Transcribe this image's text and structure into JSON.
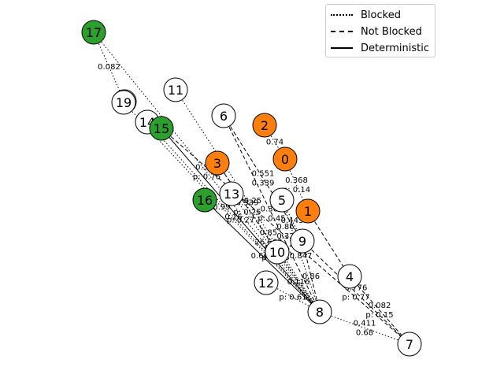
{
  "colors": {
    "orange": "#ff7f0e",
    "green": "#2ca02c",
    "white": "#ffffff"
  },
  "legend": [
    {
      "style": "dotted",
      "label": "Blocked"
    },
    {
      "style": "dashed",
      "label": "Not Blocked"
    },
    {
      "style": "solid",
      "label": "Deterministic"
    }
  ],
  "nodes": [
    {
      "id": "0",
      "color": "orange"
    },
    {
      "id": "1",
      "color": "orange"
    },
    {
      "id": "2",
      "color": "orange"
    },
    {
      "id": "3",
      "color": "orange"
    },
    {
      "id": "4",
      "color": "white"
    },
    {
      "id": "5",
      "color": "white"
    },
    {
      "id": "6",
      "color": "white"
    },
    {
      "id": "7",
      "color": "white"
    },
    {
      "id": "8",
      "color": "white"
    },
    {
      "id": "9",
      "color": "white"
    },
    {
      "id": "10",
      "color": "white"
    },
    {
      "id": "11",
      "color": "white"
    },
    {
      "id": "12",
      "color": "white"
    },
    {
      "id": "13",
      "color": "white"
    },
    {
      "id": "14",
      "color": "white"
    },
    {
      "id": "15",
      "color": "green"
    },
    {
      "id": "16",
      "color": "green"
    },
    {
      "id": "17",
      "color": "green"
    },
    {
      "id": "18",
      "color": "white"
    },
    {
      "id": "19",
      "color": "white"
    }
  ],
  "edges": [
    {
      "from": "17",
      "to": "8",
      "style": "dotted",
      "lines": [
        "0.329",
        "p: 0.76"
      ]
    },
    {
      "from": "17",
      "to": "18",
      "style": "dotted",
      "lines": [
        "0.082"
      ]
    },
    {
      "from": "19",
      "to": "8",
      "style": "dotted",
      "lines": [
        "0.99"
      ]
    },
    {
      "from": "14",
      "to": "8",
      "style": "dotted",
      "lines": [
        "0.26"
      ]
    },
    {
      "from": "15",
      "to": "7",
      "style": "dashed",
      "lines": [
        "0.86",
        "0.32",
        "p: 0.42"
      ]
    },
    {
      "from": "15",
      "to": "8",
      "style": "solid",
      "lines": [
        "p: 0.27"
      ]
    },
    {
      "from": "11",
      "to": "8",
      "style": "dotted",
      "lines": [
        "p: 0.25"
      ]
    },
    {
      "from": "6",
      "to": "8",
      "style": "dashed",
      "lines": [
        "0.368",
        "p: 0.45"
      ]
    },
    {
      "from": "6",
      "to": "9",
      "style": "dashed",
      "lines": [
        "0.551",
        "0.339"
      ]
    },
    {
      "from": "2",
      "to": "0",
      "style": "dotted",
      "lines": [
        "0.74"
      ]
    },
    {
      "from": "0",
      "to": "1",
      "style": "dotted",
      "lines": [
        "0.368",
        "p: 0.14"
      ]
    },
    {
      "from": "3",
      "to": "8",
      "style": "dotted",
      "lines": [
        "0.85",
        "26.663"
      ]
    },
    {
      "from": "3",
      "to": "10",
      "style": "dashed",
      "lines": [
        "0.339",
        "p: 0.25"
      ]
    },
    {
      "from": "13",
      "to": "8",
      "style": "dotted",
      "lines": [
        "0.593",
        "p: 0.68"
      ]
    },
    {
      "from": "16",
      "to": "8",
      "style": "solid",
      "lines": [
        "0.663"
      ]
    },
    {
      "from": "5",
      "to": "9",
      "style": "dotted",
      "lines": [
        "0.443"
      ]
    },
    {
      "from": "5",
      "to": "8",
      "style": "dotted",
      "lines": [
        "0.847"
      ]
    },
    {
      "from": "10",
      "to": "8",
      "style": "dotted",
      "lines": [
        "0.116"
      ]
    },
    {
      "from": "9",
      "to": "7",
      "style": "dashed",
      "lines": [
        "0.776",
        "p: 0.77"
      ]
    },
    {
      "from": "9",
      "to": "8",
      "style": "dashed",
      "lines": [
        "0.86"
      ]
    },
    {
      "from": "4",
      "to": "7",
      "style": "dashed",
      "lines": [
        "0.082",
        "p: 0.15"
      ]
    },
    {
      "from": "12",
      "to": "8",
      "style": "dotted",
      "lines": [
        "p: 0.61"
      ]
    },
    {
      "from": "8",
      "to": "7",
      "style": "dotted",
      "lines": [
        "0.411",
        "0.68"
      ]
    },
    {
      "from": "1",
      "to": "4",
      "style": "dashed",
      "lines": []
    }
  ]
}
